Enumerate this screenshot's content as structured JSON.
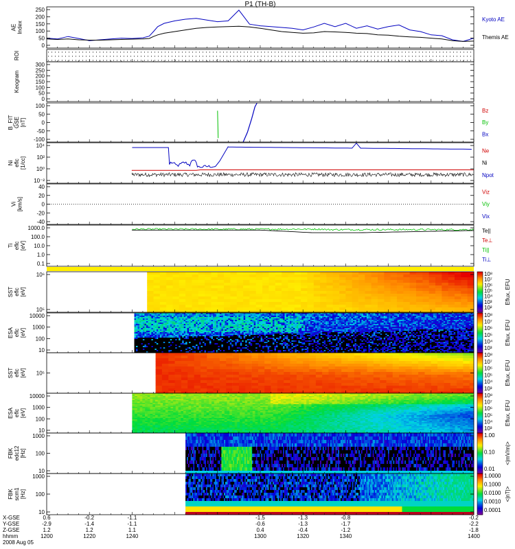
{
  "title": "P1 (TH-B)",
  "chart_data": [
    {
      "type": "line",
      "ylabel": "AE Index",
      "ylim": [
        0,
        250
      ],
      "yticks": [
        "250",
        "200",
        "150",
        "100",
        "50",
        "0"
      ],
      "legend": [
        {
          "name": "Kyoto AE",
          "color": "#0000c0"
        },
        {
          "name": "Themis AE",
          "color": "#000000"
        }
      ],
      "x": [
        1200,
        1205,
        1210,
        1215,
        1220,
        1225,
        1230,
        1235,
        1240,
        1245,
        1248,
        1250,
        1252,
        1255,
        1260,
        1265,
        1270,
        1275,
        1280,
        1285,
        1290,
        1295,
        1300,
        1305,
        1310,
        1315,
        1320,
        1325,
        1330,
        1335,
        1340,
        1345,
        1350,
        1355,
        1360,
        1365,
        1370,
        1375,
        1380,
        1385,
        1390,
        1395,
        1400
      ],
      "series": [
        {
          "name": "Kyoto AE",
          "color": "#0000c0",
          "values": [
            60,
            55,
            70,
            58,
            45,
            50,
            55,
            60,
            58,
            62,
            72,
            100,
            130,
            150,
            165,
            175,
            180,
            170,
            160,
            165,
            230,
            145,
            135,
            130,
            125,
            120,
            110,
            128,
            150,
            130,
            150,
            120,
            135,
            115,
            130,
            140,
            110,
            100,
            80,
            75,
            50,
            40,
            60
          ]
        },
        {
          "name": "Themis AE",
          "color": "#000000",
          "values": [
            55,
            52,
            55,
            50,
            48,
            48,
            50,
            52,
            54,
            55,
            58,
            70,
            80,
            90,
            100,
            110,
            120,
            125,
            128,
            130,
            132,
            128,
            120,
            110,
            100,
            95,
            90,
            92,
            100,
            98,
            95,
            90,
            88,
            80,
            78,
            72,
            68,
            65,
            60,
            55,
            45,
            40,
            42
          ]
        }
      ]
    },
    {
      "type": "table",
      "ylabel": "ROI"
    },
    {
      "type": "heatmap",
      "ylabel": "Keogram",
      "ylim": [
        0,
        300
      ],
      "yticks": [
        "300",
        "250",
        "200",
        "150",
        "100",
        "50",
        "0"
      ]
    },
    {
      "type": "line",
      "ylabel": "B_FIT GSE [nT]",
      "ylim": [
        -100,
        100
      ],
      "yticks": [
        "100",
        "50",
        "0",
        "-50",
        "-100"
      ],
      "legend": [
        {
          "name": "Bz",
          "color": "#d00000"
        },
        {
          "name": "By",
          "color": "#00c000"
        },
        {
          "name": "Bx",
          "color": "#0000c0"
        }
      ]
    },
    {
      "type": "line",
      "ylabel": "Ni eflc [1/cc]",
      "ylog": true,
      "yticks": [
        "10⁴",
        "10²",
        "10⁰",
        "10⁻²"
      ],
      "legend": [
        {
          "name": "Ne",
          "color": "#d00000"
        },
        {
          "name": "Ni",
          "color": "#000000"
        },
        {
          "name": "Npot",
          "color": "#0000c0"
        }
      ]
    },
    {
      "type": "line",
      "ylabel": "Vi [km/s]",
      "ylim": [
        -50,
        50
      ],
      "yticks": [
        "40",
        "20",
        "0",
        "-20",
        "-40"
      ],
      "legend": [
        {
          "name": "Viz",
          "color": "#d00000"
        },
        {
          "name": "Viy",
          "color": "#00c000"
        },
        {
          "name": "Vix",
          "color": "#0000c0"
        }
      ]
    },
    {
      "type": "line",
      "ylabel": "Ti eflc [eV]",
      "ylog": true,
      "yticks": [
        "1000.0",
        "100.0",
        "10.0",
        "1.0",
        "0.1"
      ],
      "legend": [
        {
          "name": "Te||",
          "color": "#000000"
        },
        {
          "name": "Te⊥",
          "color": "#d00000"
        },
        {
          "name": "Ti||",
          "color": "#00c000"
        },
        {
          "name": "Ti⊥",
          "color": "#0000c0"
        }
      ]
    },
    {
      "type": "heatmap",
      "ylabel": "SST eflc [eV]",
      "yticks": [
        "10⁶",
        "10⁵"
      ],
      "colorbar": [
        "10⁸",
        "10⁷",
        "10⁶",
        "10⁵",
        "10⁴",
        "10³",
        "10²"
      ],
      "cblabel": "Eflux, EFU"
    },
    {
      "type": "heatmap",
      "ylabel": "ESA eflc [eV]",
      "yticks": [
        "10000",
        "1000",
        "100",
        "10"
      ],
      "colorbar": [
        "10⁸",
        "10⁷",
        "10⁶",
        "10⁵",
        "10⁴",
        "10³"
      ],
      "cblabel": "Eflux, EFU"
    },
    {
      "type": "heatmap",
      "ylabel": "SST eflc [eV]",
      "yticks": [
        "10⁵"
      ],
      "colorbar": [
        "10⁸",
        "10⁷",
        "10⁶",
        "10⁵",
        "10⁴",
        "10³"
      ],
      "cblabel": "Eflux, EFU"
    },
    {
      "type": "heatmap",
      "ylabel": "ESA eflc [eV]",
      "yticks": [
        "10000",
        "1000",
        "100",
        "10"
      ],
      "colorbar": [
        "10⁸",
        "10⁷",
        "10⁶",
        "10⁵",
        "10⁴",
        "10³"
      ],
      "cblabel": "Eflux, EFU"
    },
    {
      "type": "heatmap",
      "ylabel": "FBK edc12 [Hz]",
      "yticks": [
        "1000",
        "100",
        "10"
      ],
      "colorbar": [
        "1.00",
        "0.10",
        "0.01"
      ],
      "cblabel": "<|mV/m|>"
    },
    {
      "type": "heatmap",
      "ylabel": "FBK scm1 [Hz]",
      "yticks": [
        "1000",
        "100",
        "10"
      ],
      "colorbar": [
        "1.0000",
        "0.1000",
        "0.0100",
        "0.0010",
        "0.0001"
      ],
      "cblabel": "<|nT|>"
    }
  ],
  "xaxis": {
    "rows": [
      {
        "label": "X-GSE",
        "values": [
          "0.6",
          "-0.2",
          "-1.1",
          "-1.5",
          "-1.3",
          "-0.8",
          "-0.2"
        ]
      },
      {
        "label": "Y-GSE",
        "values": [
          "-2.9",
          "-1.4",
          "-1.1",
          "-0.6",
          "-1.3",
          "-1.7",
          "-2.2"
        ]
      },
      {
        "label": "Z-GSE",
        "values": [
          "1.2",
          "1.2",
          "1.1",
          "0.4",
          "-0.4",
          "-1.2",
          "-1.8"
        ]
      },
      {
        "label": "hhmm",
        "values": [
          "1200",
          "1220",
          "1240",
          "1300",
          "1320",
          "1340",
          "1400"
        ]
      }
    ],
    "date": "2008 Aug 05"
  }
}
